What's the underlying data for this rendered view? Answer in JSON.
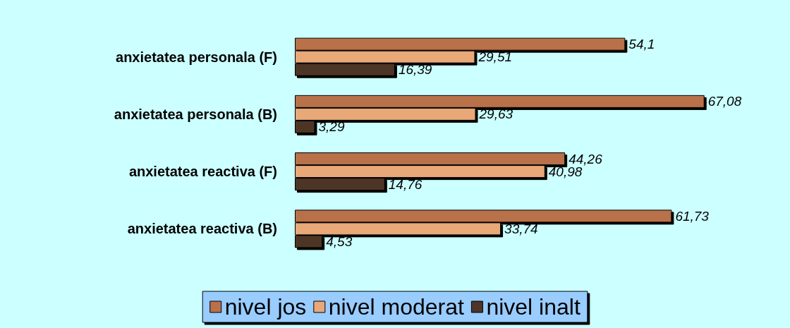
{
  "chart_data": {
    "type": "bar",
    "orientation": "horizontal",
    "categories": [
      "anxietatea personala (F)",
      "anxietatea personala (B)",
      "anxietatea reactiva (F)",
      "anxietatea reactiva (B)"
    ],
    "series": [
      {
        "name": "nivel jos",
        "color": "#b8714a",
        "values": [
          54.1,
          67.08,
          44.26,
          61.73
        ],
        "value_labels": [
          "54,1",
          "67,08",
          "44,26",
          "61,73"
        ]
      },
      {
        "name": "nivel moderat",
        "color": "#e8a878",
        "values": [
          29.51,
          29.63,
          40.98,
          33.74
        ],
        "value_labels": [
          "29,51",
          "29,63",
          "40,98",
          "33,74"
        ]
      },
      {
        "name": "nivel inalt",
        "color": "#4e3528",
        "values": [
          16.39,
          3.29,
          14.76,
          4.53
        ],
        "value_labels": [
          "16,39",
          "3,29",
          "14,76",
          "4,53"
        ]
      }
    ],
    "legend": "bottom"
  }
}
